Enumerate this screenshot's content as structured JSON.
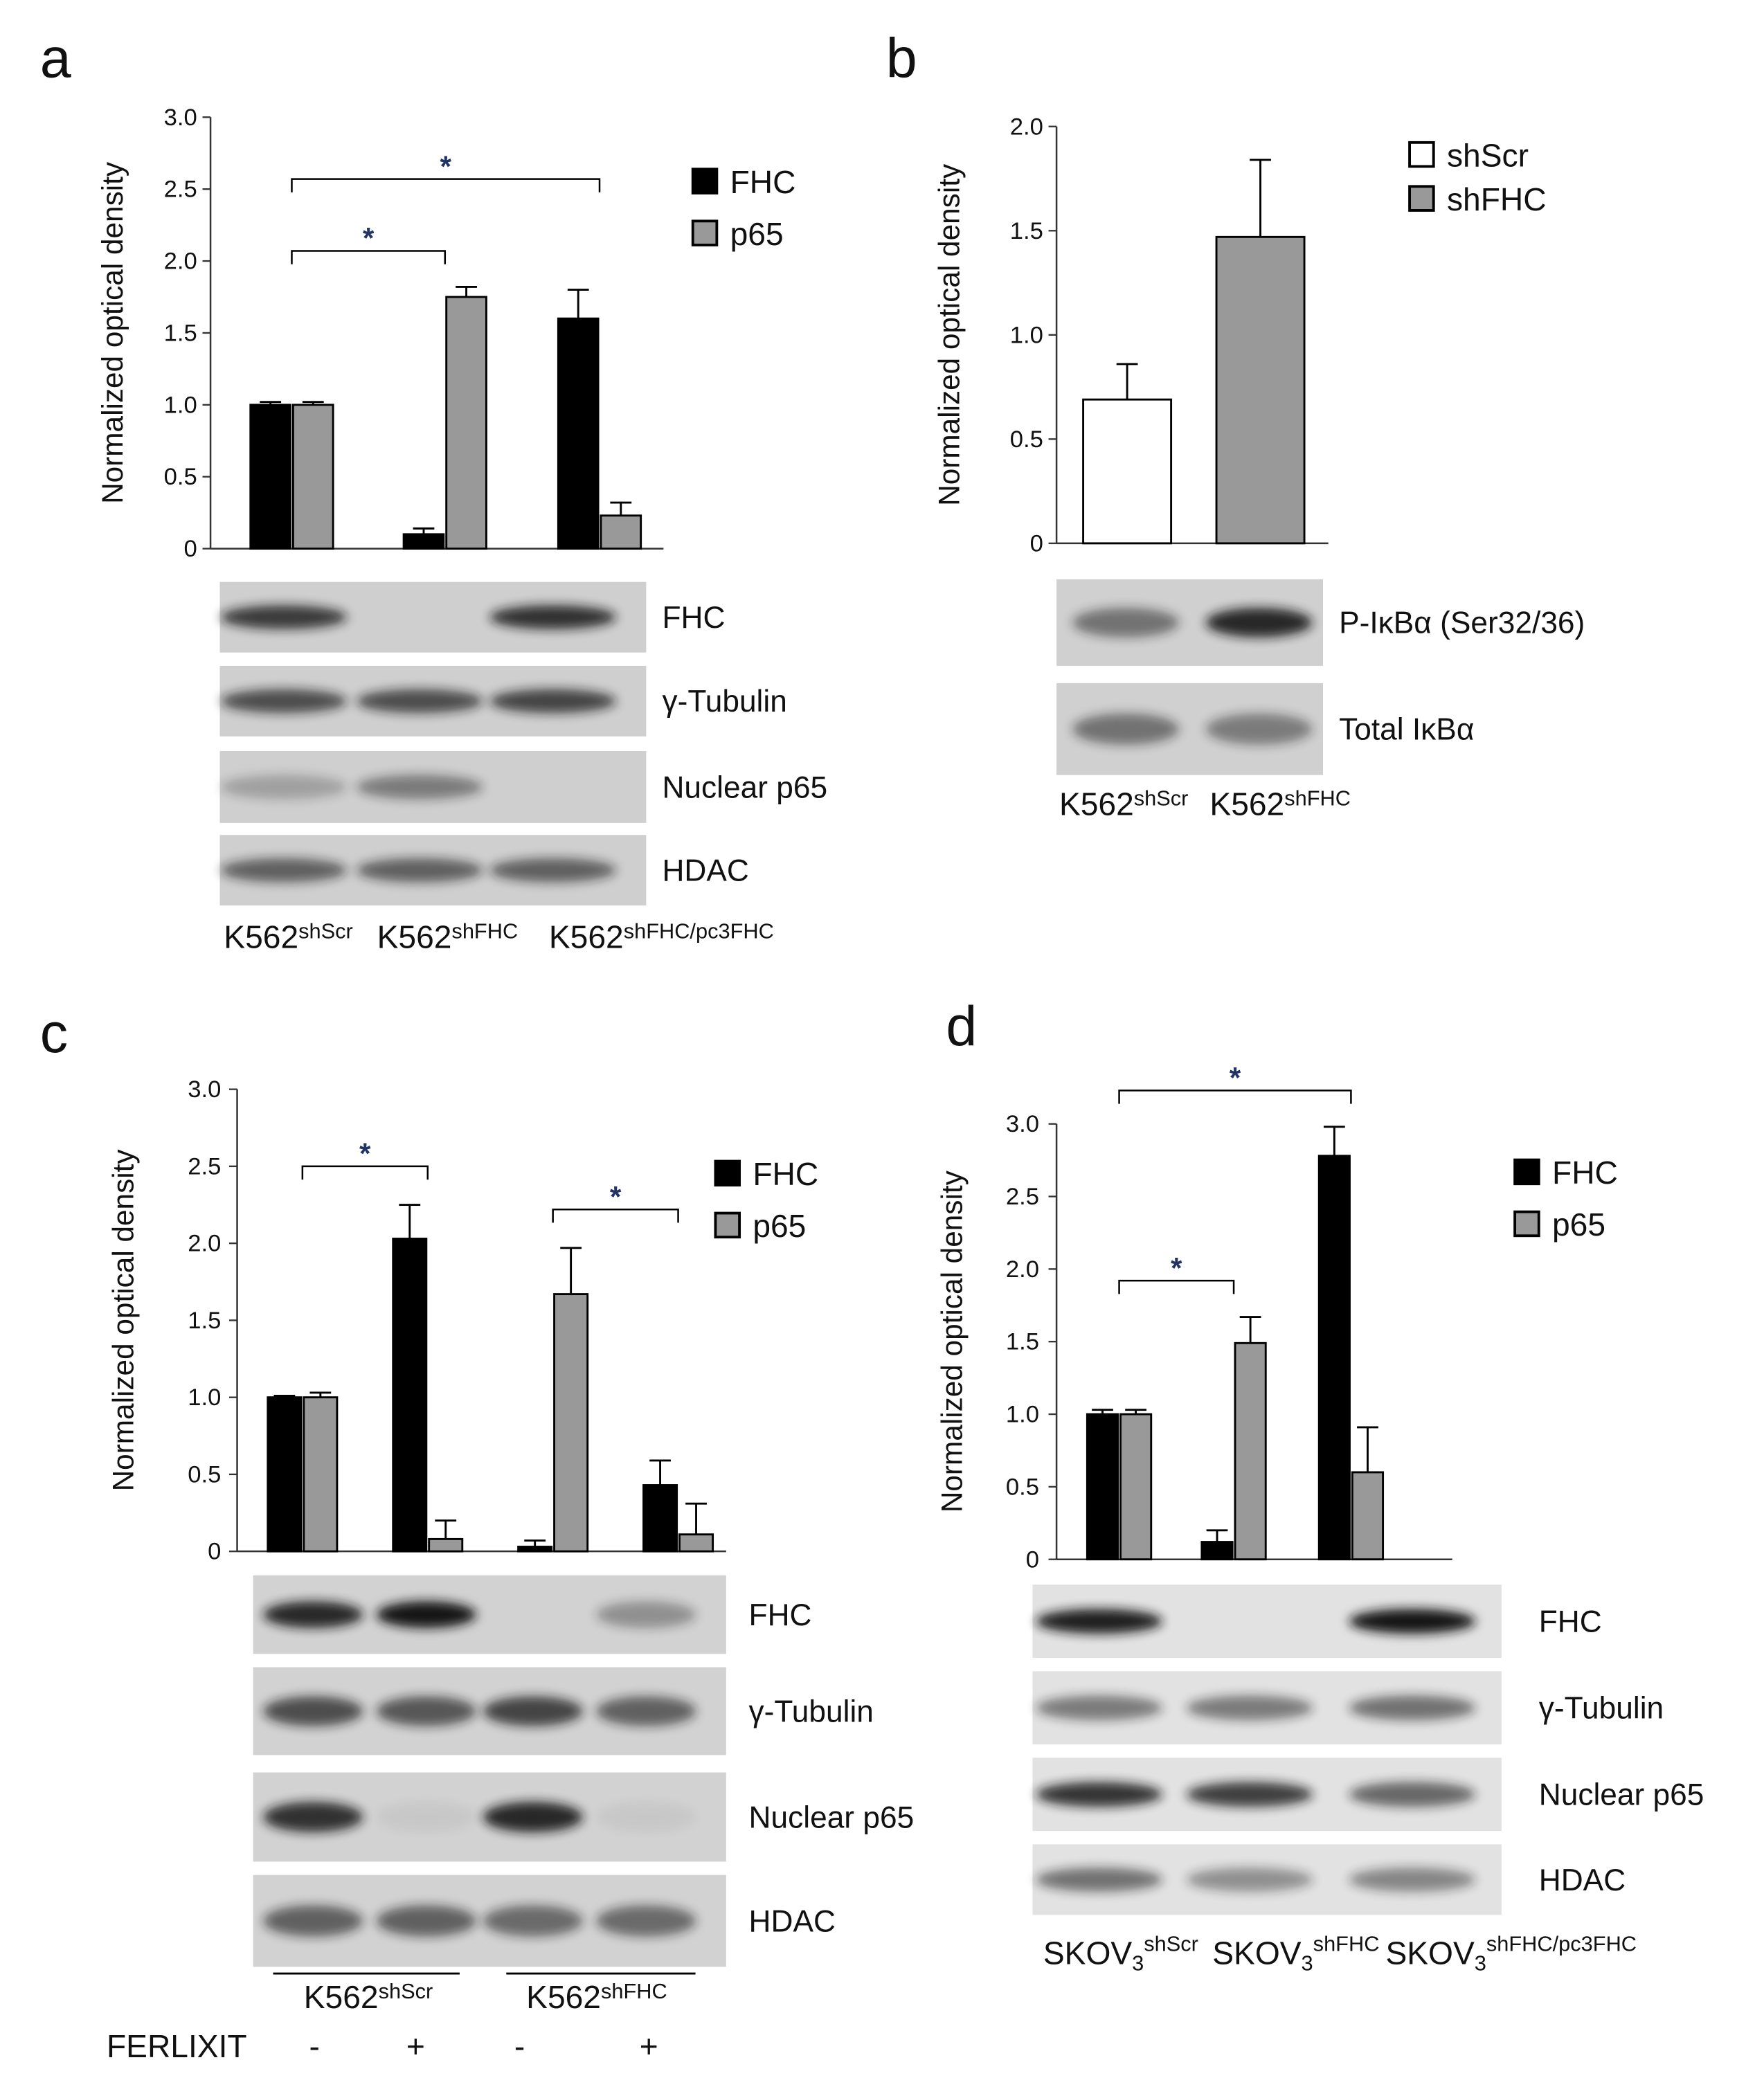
{
  "chart_data": [
    {
      "type": "bar",
      "panel": "a",
      "ylabel": "Normalized optical density",
      "ylim": [
        0,
        3
      ],
      "yticks": [
        0,
        0.5,
        {
          "value": 1,
          "label": "1.0"
        },
        1.5,
        {
          "value": 2,
          "label": "2.0"
        },
        2.5,
        {
          "value": 3,
          "label": "3.0"
        }
      ],
      "series": [
        {
          "name": "FHC",
          "color": "#000000",
          "values": [
            1.0,
            0.1,
            1.6
          ],
          "errors": [
            0.02,
            0.04,
            0.2
          ]
        },
        {
          "name": "p65",
          "color": "#999999",
          "values": [
            1.0,
            1.75,
            0.23
          ],
          "errors": [
            0.02,
            0.07,
            0.09
          ]
        }
      ],
      "annotations": [
        {
          "text": "*",
          "from": 0,
          "to": 1
        },
        {
          "text": "*",
          "from": 0,
          "to": 2
        }
      ],
      "blots": [
        "FHC",
        "γ-Tubulin",
        "Nuclear p65",
        "HDAC"
      ],
      "categories": [
        {
          "text": "K562",
          "sup": "shScr"
        },
        {
          "text": "K562",
          "sup": "shFHC"
        },
        {
          "text": "K562",
          "sup": "shFHC/pc3FHC"
        }
      ]
    },
    {
      "type": "bar",
      "panel": "b",
      "ylabel": "Normalized optical density",
      "ylim": [
        0,
        2
      ],
      "yticks": [
        0,
        0.5,
        {
          "value": 1,
          "label": "1.0"
        },
        1.5,
        {
          "value": 2,
          "label": "2.0"
        }
      ],
      "series": [
        {
          "name": "shScr",
          "color": "#ffffff",
          "values": [
            0.69,
            null
          ],
          "errors": [
            0.17,
            null
          ]
        },
        {
          "name": "shFHC",
          "color": "#999999",
          "values": [
            null,
            1.47
          ],
          "errors": [
            null,
            0.37
          ]
        }
      ],
      "blots": [
        "P-IκBα (Ser32/36)",
        "Total IκBα"
      ],
      "categories": [
        {
          "text": "K562",
          "sup": "shScr"
        },
        {
          "text": "K562",
          "sup": "shFHC"
        }
      ]
    },
    {
      "type": "bar",
      "panel": "c",
      "ylabel": "Normalized optical density",
      "ylim": [
        0,
        3
      ],
      "yticks": [
        0,
        0.5,
        {
          "value": 1,
          "label": "1.0"
        },
        1.5,
        {
          "value": 2,
          "label": "2.0"
        },
        2.5,
        {
          "value": 3,
          "label": "3.0"
        }
      ],
      "series": [
        {
          "name": "FHC",
          "color": "#000000",
          "values": [
            1.0,
            2.03,
            0.03,
            0.43
          ],
          "errors": [
            0.01,
            0.22,
            0.04,
            0.16
          ]
        },
        {
          "name": "p65",
          "color": "#999999",
          "values": [
            1.0,
            0.08,
            1.67,
            0.11
          ],
          "errors": [
            0.03,
            0.12,
            0.3,
            0.2
          ]
        }
      ],
      "annotations": [
        {
          "text": "*",
          "from": 0,
          "to": 1
        },
        {
          "text": "*",
          "from": 2,
          "to": 3
        }
      ],
      "blots": [
        "FHC",
        "γ-Tubulin",
        "Nuclear p65",
        "HDAC"
      ],
      "category_title": "FERLIXIT",
      "categories": [
        "-",
        "+",
        "-",
        "+"
      ],
      "groups": [
        {
          "text": "K562",
          "sup": "shScr"
        },
        {
          "text": "K562",
          "sup": "shFHC"
        }
      ]
    },
    {
      "type": "bar",
      "panel": "d",
      "ylabel": "Normalized optical density",
      "ylim": [
        0,
        3
      ],
      "yticks": [
        0,
        0.5,
        {
          "value": 1,
          "label": "1.0"
        },
        1.5,
        {
          "value": 2,
          "label": "2.0"
        },
        2.5,
        {
          "value": 3,
          "label": "3.0"
        }
      ],
      "series": [
        {
          "name": "FHC",
          "color": "#000000",
          "values": [
            1.0,
            0.12,
            2.78
          ],
          "errors": [
            0.03,
            0.08,
            0.2
          ]
        },
        {
          "name": "p65",
          "color": "#999999",
          "values": [
            1.0,
            1.49,
            0.6
          ],
          "errors": [
            0.03,
            0.18,
            0.31
          ]
        }
      ],
      "annotations": [
        {
          "text": "*",
          "from": 0,
          "to": 1
        },
        {
          "text": "*",
          "from": 0,
          "to": 2
        }
      ],
      "blots": [
        "FHC",
        "γ-Tubulin",
        "Nuclear p65",
        "HDAC"
      ],
      "categories": [
        {
          "text": "SKOV",
          "sub": "3",
          "sup": "shScr"
        },
        {
          "text": "SKOV",
          "sub": "3",
          "sup": "shFHC"
        },
        {
          "text": "SKOV",
          "sub": "3",
          "sup": "shFHC/pc3FHC"
        }
      ]
    }
  ]
}
